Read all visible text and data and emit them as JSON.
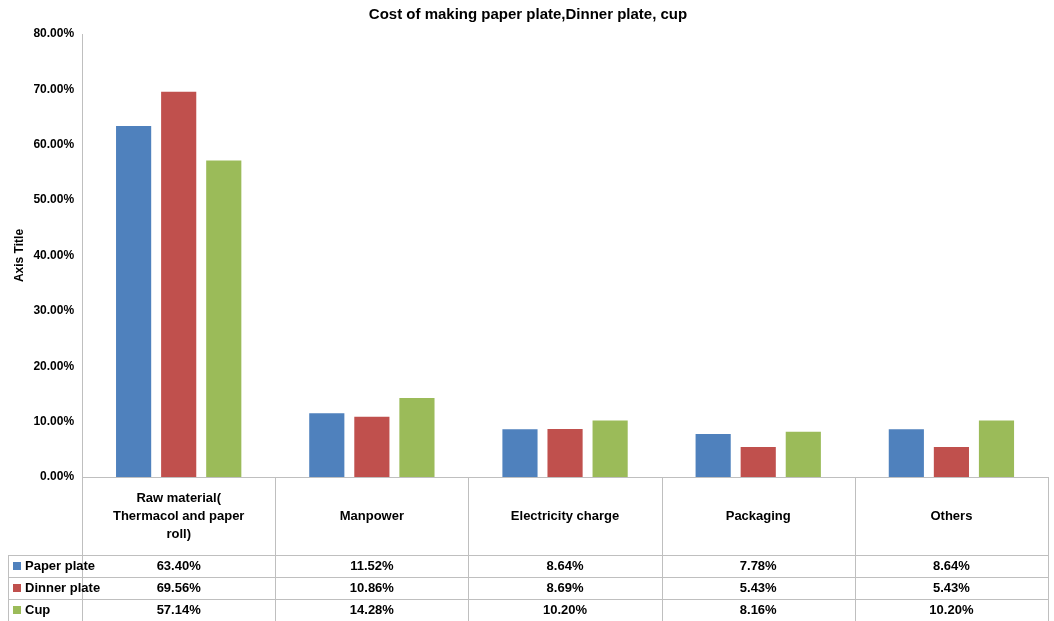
{
  "chart_data": {
    "type": "bar",
    "title": "Cost of making paper plate,Dinner plate, cup",
    "ylabel": "Axis Title",
    "categories": [
      "Raw material( Thermacol and paper roll)",
      "Manpower",
      "Electricity charge",
      "Packaging",
      "Others"
    ],
    "series": [
      {
        "name": "Paper plate",
        "color": "#4f81bd",
        "values": [
          63.4,
          11.52,
          8.64,
          7.78,
          8.64
        ],
        "value_labels": [
          "63.40%",
          "11.52%",
          "8.64%",
          "7.78%",
          "8.64%"
        ]
      },
      {
        "name": "Dinner plate",
        "color": "#c0504d",
        "values": [
          69.56,
          10.86,
          8.69,
          5.43,
          5.43
        ],
        "value_labels": [
          "69.56%",
          "10.86%",
          "8.69%",
          "5.43%",
          "5.43%"
        ]
      },
      {
        "name": "Cup",
        "color": "#9bbb59",
        "values": [
          57.14,
          14.28,
          10.2,
          8.16,
          10.2
        ],
        "value_labels": [
          "57.14%",
          "14.28%",
          "10.20%",
          "8.16%",
          "10.20%"
        ]
      }
    ],
    "ylim": [
      0,
      80
    ],
    "yticks": [
      {
        "value": 0,
        "label": "0.00%"
      },
      {
        "value": 10,
        "label": "10.00%"
      },
      {
        "value": 20,
        "label": "20.00%"
      },
      {
        "value": 30,
        "label": "30.00%"
      },
      {
        "value": 40,
        "label": "40.00%"
      },
      {
        "value": 50,
        "label": "50.00%"
      },
      {
        "value": 60,
        "label": "60.00%"
      },
      {
        "value": 70,
        "label": "70.00%"
      },
      {
        "value": 80,
        "label": "80.00%"
      }
    ],
    "grid": false,
    "legend": "bottom"
  }
}
